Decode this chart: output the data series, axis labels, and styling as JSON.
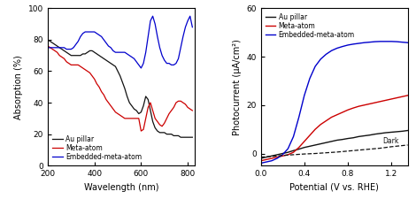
{
  "left_xlim": [
    200,
    830
  ],
  "left_ylim": [
    0,
    100
  ],
  "left_xlabel": "Wavelength (nm)",
  "left_ylabel": "Absorption (%)",
  "left_xticks": [
    200,
    400,
    600,
    800
  ],
  "left_yticks": [
    0,
    20,
    40,
    60,
    80,
    100
  ],
  "right_xlim": [
    0.0,
    1.35
  ],
  "right_ylim": [
    -5,
    60
  ],
  "right_xlabel": "Potential (V vs. RHE)",
  "right_ylabel": "Photocurrent (μA/cm²)",
  "right_xticks": [
    0.0,
    0.4,
    0.8,
    1.2
  ],
  "right_yticks": [
    0,
    20,
    40,
    60
  ],
  "legend_labels": [
    "Au pillar",
    "Meta-atom",
    "Embedded-meta-atom"
  ],
  "colors": {
    "black": "#111111",
    "red": "#cc0000",
    "blue": "#0000cc"
  },
  "dark_label": "Dark",
  "abs_black_x": [
    200,
    210,
    220,
    230,
    240,
    250,
    260,
    270,
    280,
    290,
    300,
    310,
    320,
    330,
    340,
    350,
    360,
    370,
    380,
    390,
    400,
    410,
    420,
    430,
    440,
    450,
    460,
    470,
    480,
    490,
    500,
    510,
    520,
    530,
    540,
    550,
    560,
    570,
    580,
    590,
    600,
    610,
    620,
    630,
    640,
    650,
    660,
    670,
    680,
    690,
    700,
    710,
    720,
    730,
    740,
    750,
    760,
    770,
    780,
    790,
    800,
    810,
    820
  ],
  "abs_black_y": [
    80,
    79,
    78,
    77,
    76,
    75,
    74,
    73,
    72,
    71,
    70,
    70,
    70,
    70,
    70,
    71,
    71,
    72,
    73,
    73,
    72,
    71,
    70,
    69,
    68,
    67,
    66,
    65,
    64,
    63,
    60,
    57,
    53,
    49,
    44,
    40,
    38,
    36,
    35,
    33,
    34,
    38,
    44,
    42,
    35,
    28,
    24,
    22,
    21,
    21,
    21,
    20,
    20,
    20,
    19,
    19,
    19,
    18,
    18,
    18,
    18,
    18,
    18
  ],
  "abs_red_x": [
    200,
    210,
    220,
    230,
    240,
    250,
    260,
    270,
    280,
    290,
    300,
    310,
    320,
    330,
    340,
    350,
    360,
    370,
    380,
    390,
    400,
    410,
    420,
    430,
    440,
    450,
    460,
    470,
    480,
    490,
    500,
    510,
    520,
    530,
    540,
    550,
    560,
    570,
    580,
    590,
    600,
    610,
    620,
    630,
    640,
    650,
    660,
    670,
    680,
    690,
    700,
    710,
    720,
    730,
    740,
    750,
    760,
    770,
    780,
    790,
    800,
    810,
    820
  ],
  "abs_red_y": [
    76,
    75,
    74,
    73,
    72,
    70,
    69,
    68,
    66,
    65,
    64,
    64,
    64,
    64,
    63,
    62,
    61,
    60,
    59,
    57,
    55,
    52,
    50,
    47,
    45,
    42,
    40,
    38,
    36,
    34,
    33,
    32,
    31,
    30,
    30,
    30,
    30,
    30,
    30,
    30,
    22,
    23,
    30,
    37,
    40,
    35,
    30,
    28,
    26,
    25,
    27,
    30,
    33,
    35,
    37,
    40,
    41,
    41,
    40,
    39,
    37,
    36,
    35
  ],
  "abs_blue_x": [
    200,
    210,
    220,
    230,
    240,
    250,
    260,
    270,
    280,
    290,
    300,
    310,
    320,
    330,
    340,
    350,
    360,
    370,
    380,
    390,
    400,
    410,
    420,
    430,
    440,
    450,
    460,
    470,
    480,
    490,
    500,
    510,
    520,
    530,
    540,
    550,
    560,
    570,
    580,
    590,
    600,
    610,
    620,
    630,
    640,
    650,
    660,
    670,
    680,
    690,
    700,
    710,
    720,
    730,
    740,
    750,
    760,
    770,
    780,
    790,
    800,
    810,
    820
  ],
  "abs_blue_y": [
    75,
    75,
    75,
    75,
    75,
    75,
    75,
    75,
    74,
    74,
    74,
    75,
    77,
    79,
    82,
    84,
    85,
    85,
    85,
    85,
    85,
    84,
    83,
    82,
    80,
    78,
    76,
    75,
    73,
    72,
    72,
    72,
    72,
    72,
    71,
    70,
    69,
    68,
    66,
    64,
    62,
    65,
    72,
    82,
    92,
    95,
    90,
    82,
    75,
    70,
    67,
    65,
    65,
    64,
    64,
    65,
    68,
    75,
    82,
    88,
    92,
    95,
    88
  ],
  "photo_black_x": [
    0.0,
    0.05,
    0.1,
    0.15,
    0.2,
    0.25,
    0.3,
    0.35,
    0.4,
    0.45,
    0.5,
    0.55,
    0.6,
    0.65,
    0.7,
    0.75,
    0.8,
    0.85,
    0.9,
    0.95,
    1.0,
    1.05,
    1.1,
    1.15,
    1.2,
    1.25,
    1.3,
    1.35
  ],
  "photo_black_y": [
    -2,
    -1.5,
    -1,
    -0.5,
    0,
    0.5,
    1.2,
    1.8,
    2.5,
    3.0,
    3.5,
    4.0,
    4.5,
    5.0,
    5.5,
    5.8,
    6.2,
    6.5,
    7.0,
    7.3,
    7.6,
    8.0,
    8.3,
    8.6,
    8.8,
    9.0,
    9.2,
    9.5
  ],
  "photo_red_x": [
    0.0,
    0.05,
    0.1,
    0.15,
    0.2,
    0.25,
    0.3,
    0.35,
    0.4,
    0.45,
    0.5,
    0.55,
    0.6,
    0.65,
    0.7,
    0.75,
    0.8,
    0.85,
    0.9,
    0.95,
    1.0,
    1.05,
    1.1,
    1.15,
    1.2,
    1.25,
    1.3,
    1.35
  ],
  "photo_red_y": [
    -3,
    -2.5,
    -2,
    -1.5,
    -1,
    -0.5,
    0.5,
    2.5,
    5,
    7.5,
    10,
    12,
    13.5,
    15,
    16,
    17,
    18,
    18.8,
    19.5,
    20,
    20.5,
    21,
    21.5,
    22,
    22.5,
    23,
    23.5,
    24
  ],
  "photo_blue_x": [
    0.0,
    0.05,
    0.1,
    0.15,
    0.2,
    0.25,
    0.3,
    0.35,
    0.4,
    0.45,
    0.5,
    0.55,
    0.6,
    0.65,
    0.7,
    0.75,
    0.8,
    0.85,
    0.9,
    0.95,
    1.0,
    1.05,
    1.1,
    1.15,
    1.2,
    1.25,
    1.3,
    1.35
  ],
  "photo_blue_y": [
    -4,
    -3.5,
    -3,
    -2,
    -0.5,
    2,
    7,
    15,
    24,
    31,
    36,
    39,
    41,
    42.5,
    43.5,
    44.2,
    44.8,
    45.2,
    45.5,
    45.8,
    46.0,
    46.2,
    46.3,
    46.3,
    46.3,
    46.2,
    46.0,
    45.8
  ],
  "dark_x": [
    0.0,
    0.1,
    0.2,
    0.3,
    0.4,
    0.5,
    0.6,
    0.7,
    0.8,
    0.9,
    1.0,
    1.1,
    1.2,
    1.35
  ],
  "dark_y": [
    -1.5,
    -1.2,
    -0.8,
    -0.5,
    -0.2,
    0.0,
    0.3,
    0.6,
    1.0,
    1.4,
    1.8,
    2.2,
    2.8,
    3.5
  ]
}
